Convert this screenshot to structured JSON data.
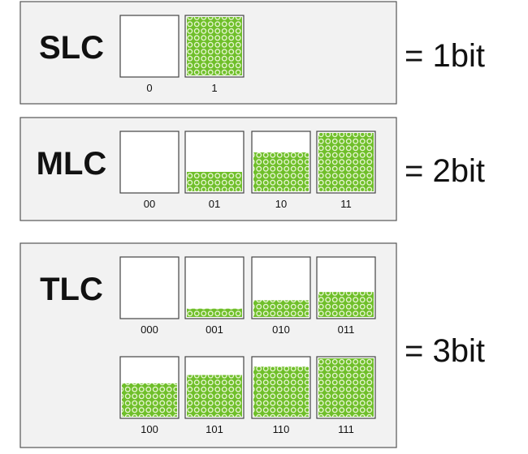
{
  "panels": [
    {
      "label": "SLC",
      "result": "= 1bit",
      "cells": [
        "0",
        "1"
      ]
    },
    {
      "label": "MLC",
      "result": "= 2bit",
      "cells": [
        "00",
        "01",
        "10",
        "11"
      ]
    },
    {
      "label": "TLC",
      "result": "= 3bit",
      "cells": [
        "000",
        "001",
        "010",
        "011",
        "100",
        "101",
        "110",
        "111"
      ]
    }
  ]
}
